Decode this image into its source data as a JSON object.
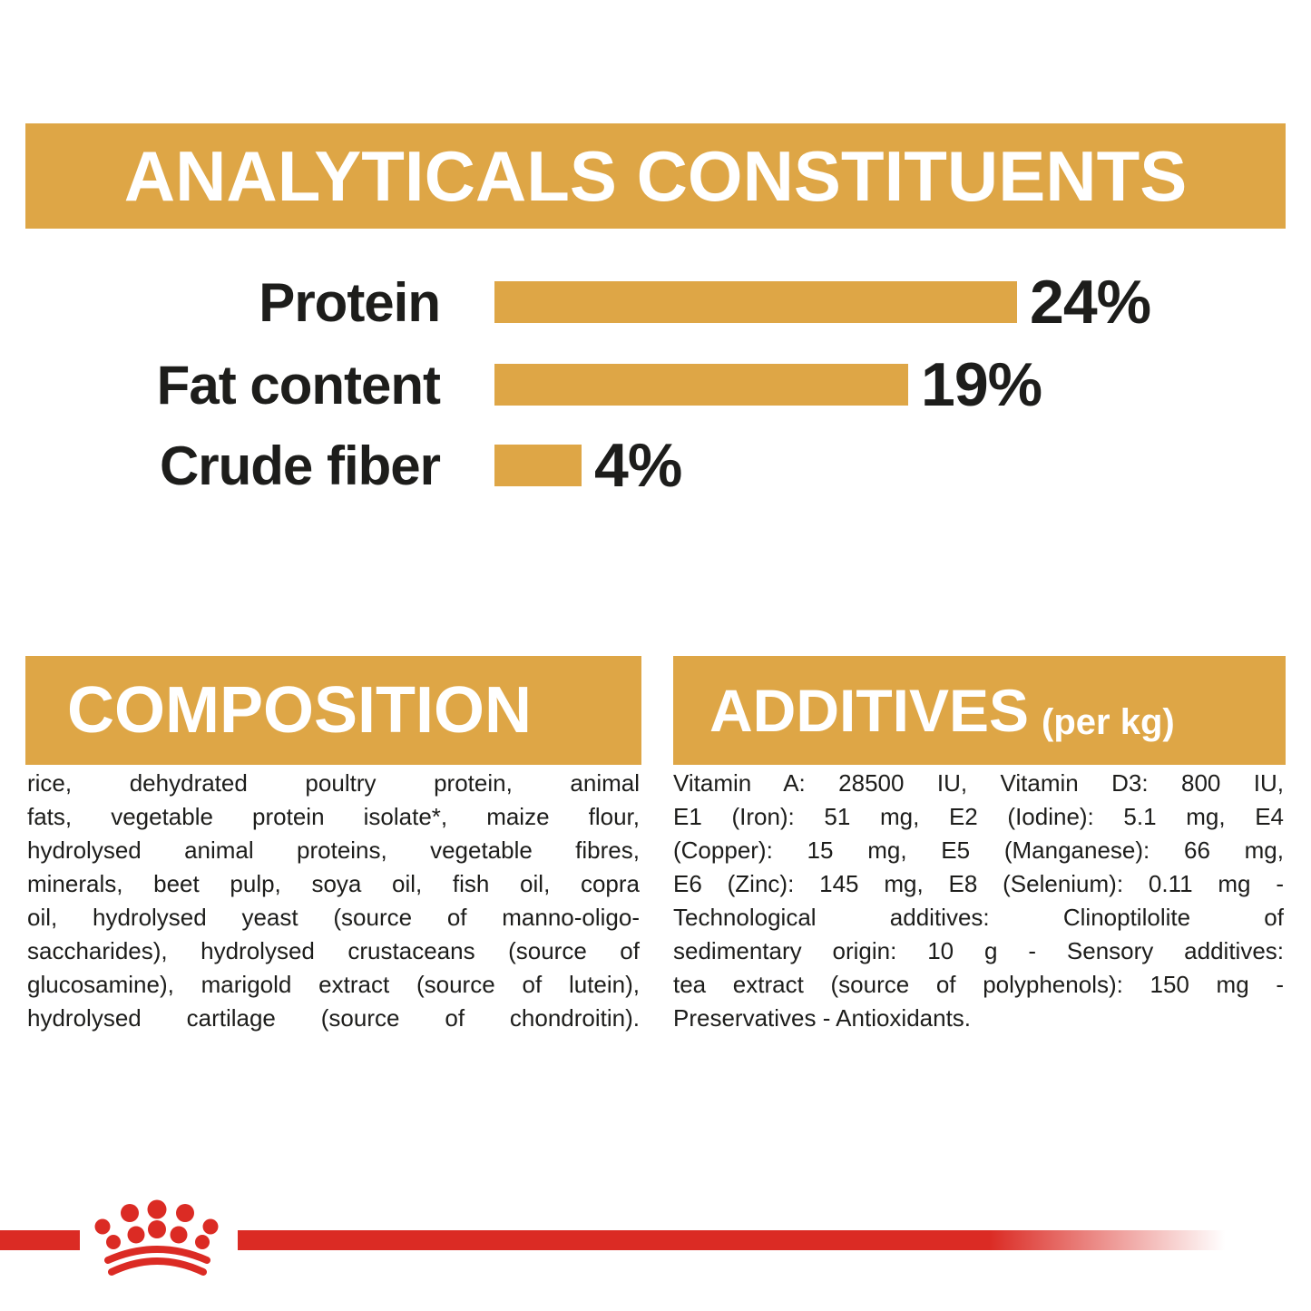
{
  "colors": {
    "gold": "#DEA646",
    "red": "#DB2B24",
    "text_black": "#1d1d1b",
    "banner_text_white": "#ffffff"
  },
  "header": {
    "title": "ANALYTICALS CONSTITUENTS"
  },
  "chart_data": {
    "type": "bar",
    "orientation": "horizontal",
    "title": "Analyticals constituents",
    "categories": [
      "Protein",
      "Fat content",
      "Crude fiber"
    ],
    "values": [
      24,
      19,
      4
    ],
    "labels": [
      "24%",
      "19%",
      "4%"
    ],
    "unit": "%",
    "xlim": [
      0,
      25
    ],
    "bar_color": "#DEA646",
    "grid": "off",
    "legend": "none"
  },
  "composition": {
    "title": "COMPOSITION",
    "lines": [
      "rice, dehydrated poultry protein, animal",
      "fats, vegetable protein isolate*, maize flour,",
      "hydrolysed animal proteins, vegetable fibres,",
      "minerals, beet pulp, soya oil, fish oil, copra",
      "oil, hydrolysed yeast (source of manno-oligo-",
      "saccharides), hydrolysed crustaceans (source of",
      "glucosamine), marigold extract (source of lutein),",
      "hydrolysed cartilage (source of chondroitin)."
    ]
  },
  "additives": {
    "title": "ADDITIVES",
    "title_suffix": "(per kg)",
    "lines": [
      "Vitamin A: 28500 IU, Vitamin D3: 800 IU,",
      "E1 (Iron): 51 mg, E2 (Iodine): 5.1 mg, E4",
      "(Copper): 15 mg, E5 (Manganese): 66 mg,",
      "E6 (Zinc): 145 mg, E8 (Selenium): 0.11 mg -",
      "Technological additives: Clinoptilolite of",
      "sedimentary origin: 10 g - Sensory additives:",
      "tea extract (source of polyphenols): 150 mg -",
      "Preservatives - Antioxidants."
    ]
  },
  "footer": {
    "logo": "royal-canin-crown"
  }
}
